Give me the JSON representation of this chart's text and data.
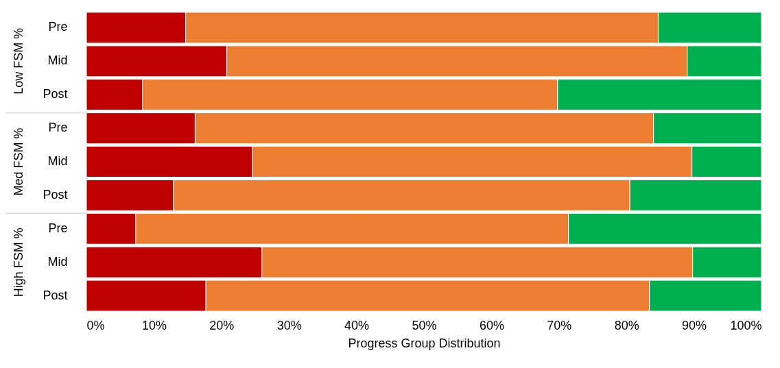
{
  "chart_data": {
    "type": "bar",
    "orientation": "horizontal",
    "stacked": true,
    "xlabel": "Progress Group Distribution",
    "categories": [
      "Pre",
      "Mid",
      "Post",
      "Pre",
      "Mid",
      "Post",
      "Pre",
      "Mid",
      "Post"
    ],
    "annotations": [
      "Low FSM %",
      "Med FSM %",
      "High FSM %"
    ],
    "series": [
      {
        "color": "#c00000",
        "values": [
          14.7,
          20.8,
          8.3,
          16.1,
          24.6,
          12.9,
          7.3,
          26.0,
          17.7
        ]
      },
      {
        "color": "#ed7d31",
        "values": [
          70.0,
          68.2,
          61.5,
          67.9,
          65.1,
          67.6,
          64.1,
          63.8,
          65.7
        ]
      },
      {
        "color": "#00b050",
        "values": [
          15.3,
          11.0,
          30.2,
          16.0,
          10.3,
          19.5,
          28.6,
          10.2,
          16.6
        ]
      }
    ],
    "xlim": [
      0,
      100
    ],
    "xticks": [
      {
        "value": 0,
        "label": "0%"
      },
      {
        "value": 10,
        "label": "10%"
      },
      {
        "value": 20,
        "label": "20%"
      },
      {
        "value": 30,
        "label": "30%"
      },
      {
        "value": 40,
        "label": "40%"
      },
      {
        "value": 50,
        "label": "50%"
      },
      {
        "value": 60,
        "label": "60%"
      },
      {
        "value": 70,
        "label": "70%"
      },
      {
        "value": 80,
        "label": "80%"
      },
      {
        "value": 90,
        "label": "90%"
      },
      {
        "value": 100,
        "label": "100%"
      }
    ]
  }
}
